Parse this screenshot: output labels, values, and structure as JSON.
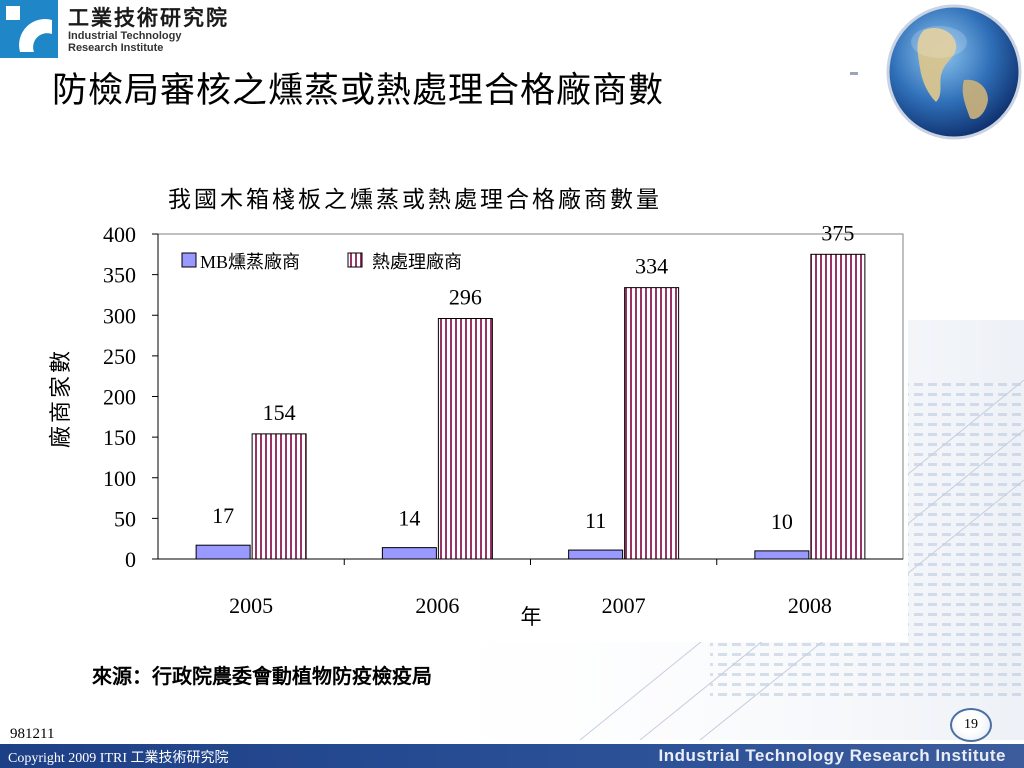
{
  "header": {
    "org_zh": "工業技術研究院",
    "org_en_line1": "Industrial Technology",
    "org_en_line2": "Research Institute",
    "title": "防檢局審核之燻蒸或熱處理合格廠商數"
  },
  "colors": {
    "brand_blue": "#1f86c8",
    "mb_bar": "#9999ff",
    "heat_stripe": "#993366",
    "footer": "#1d3f86"
  },
  "chart_data": {
    "type": "bar",
    "title": "我國木箱棧板之燻蒸或熱處理合格廠商數量",
    "xlabel": "年",
    "ylabel": "廠商家數",
    "categories": [
      "2005",
      "2006",
      "2007",
      "2008"
    ],
    "series": [
      {
        "name": "MB燻蒸廠商",
        "values": [
          17,
          14,
          11,
          10
        ],
        "color": "#9999ff",
        "pattern": "solid"
      },
      {
        "name": "熱處理廠商",
        "values": [
          154,
          296,
          334,
          375
        ],
        "color": "#993366",
        "pattern": "vertical-stripes"
      }
    ],
    "ylim": [
      0,
      400
    ],
    "yticks": [
      "0",
      "50",
      "100",
      "150",
      "200",
      "250",
      "300",
      "350",
      "400"
    ],
    "legend_position": "top-left",
    "grid": false
  },
  "source": "來源：行政院農委會動植物防疫檢疫局",
  "footer": {
    "date_code": "981211",
    "copyright": "Copyright 2009 ITRI 工業技術研究院",
    "institute": "Industrial Technology Research Institute",
    "page_number": "19"
  }
}
